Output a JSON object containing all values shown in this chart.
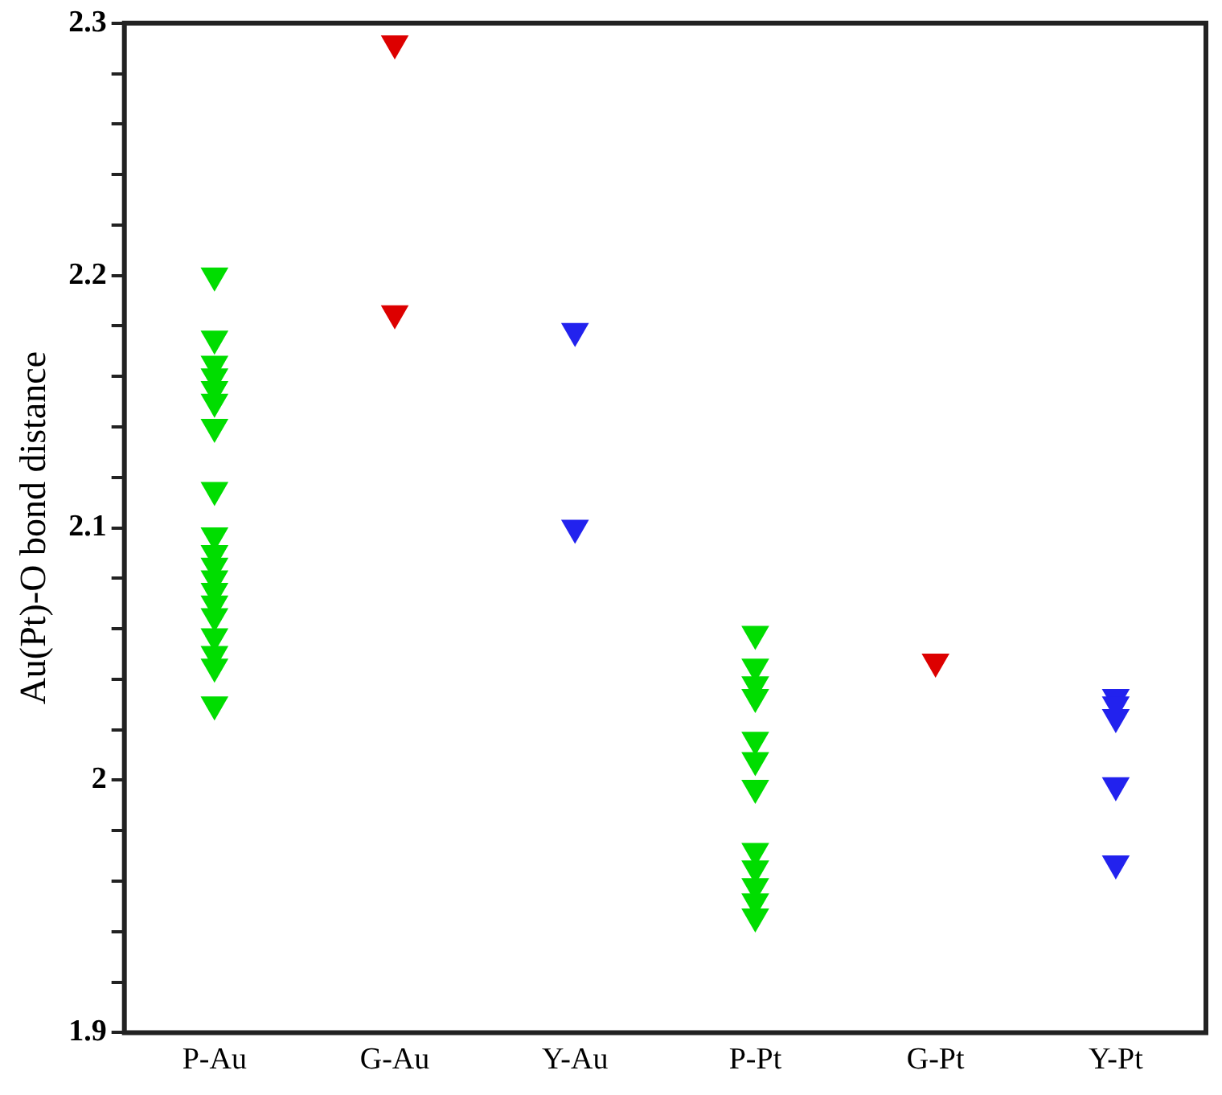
{
  "chart_data": {
    "type": "scatter",
    "ylabel": "Au(Pt)-O bond distance",
    "categories": [
      "P-Au",
      "G-Au",
      "Y-Au",
      "P-Pt",
      "G-Pt",
      "Y-Pt"
    ],
    "series": [
      {
        "color": "#00dd00",
        "x": [
          "P-Au",
          "P-Au",
          "P-Au",
          "P-Au",
          "P-Au",
          "P-Au",
          "P-Au",
          "P-Au",
          "P-Au",
          "P-Au",
          "P-Au",
          "P-Au",
          "P-Au",
          "P-Au",
          "P-Au",
          "P-Au",
          "P-Au",
          "P-Au",
          "P-Au",
          "P-Pt",
          "P-Pt",
          "P-Pt",
          "P-Pt",
          "P-Pt",
          "P-Pt",
          "P-Pt",
          "P-Pt",
          "P-Pt",
          "P-Pt",
          "P-Pt",
          "P-Pt"
        ],
        "values": [
          2.2,
          2.175,
          2.165,
          2.16,
          2.155,
          2.15,
          2.14,
          2.115,
          2.097,
          2.09,
          2.085,
          2.08,
          2.075,
          2.07,
          2.065,
          2.057,
          2.05,
          2.045,
          2.03,
          2.058,
          2.045,
          2.038,
          2.033,
          2.016,
          2.008,
          1.997,
          1.972,
          1.965,
          1.958,
          1.952,
          1.946
        ]
      },
      {
        "color": "#dd0000",
        "x": [
          "G-Au",
          "G-Au",
          "G-Pt"
        ],
        "values": [
          2.292,
          2.185,
          2.047
        ]
      },
      {
        "color": "#2222ee",
        "x": [
          "Y-Au",
          "Y-Au",
          "Y-Pt",
          "Y-Pt",
          "Y-Pt",
          "Y-Pt",
          "Y-Pt"
        ],
        "values": [
          2.178,
          2.1,
          2.033,
          2.03,
          2.025,
          1.998,
          1.967
        ]
      }
    ],
    "ylim": [
      1.9,
      2.3
    ],
    "yticks": [
      1.9,
      {
        "value": 1.92,
        "label": null
      },
      {
        "value": 1.94,
        "label": null
      },
      {
        "value": 1.96,
        "label": null
      },
      {
        "value": 1.98,
        "label": null
      },
      2,
      {
        "value": 2.02,
        "label": null
      },
      {
        "value": 2.04,
        "label": null
      },
      {
        "value": 2.06,
        "label": null
      },
      {
        "value": 2.08,
        "label": null
      },
      2.1,
      {
        "value": 2.12,
        "label": null
      },
      {
        "value": 2.14,
        "label": null
      },
      {
        "value": 2.16,
        "label": null
      },
      {
        "value": 2.18,
        "label": null
      },
      2.2,
      {
        "value": 2.22,
        "label": null
      },
      {
        "value": 2.24,
        "label": null
      },
      {
        "value": 2.26,
        "label": null
      },
      {
        "value": 2.28,
        "label": null
      },
      2.3
    ],
    "marker": "triangle",
    "grid": false,
    "legend": false
  }
}
